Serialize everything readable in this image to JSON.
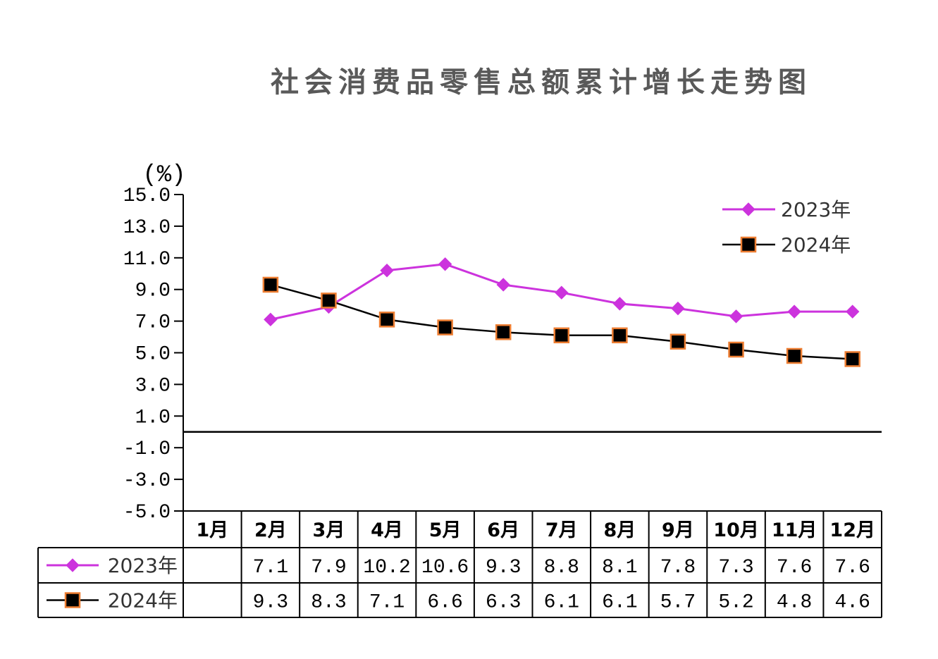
{
  "chart_data": {
    "type": "line",
    "title": "社会消费品零售总额累计增长走势图",
    "ylabel": "(%)",
    "ylim": [
      -5,
      15
    ],
    "y_ticks": [
      "15.0",
      "13.0",
      "11.0",
      "9.0",
      "7.0",
      "5.0",
      "3.0",
      "1.0",
      "-1.0",
      "-3.0",
      "-5.0"
    ],
    "categories": [
      "1月",
      "2月",
      "3月",
      "4月",
      "5月",
      "6月",
      "7月",
      "8月",
      "9月",
      "10月",
      "11月",
      "12月"
    ],
    "series": [
      {
        "name": "2023年",
        "color": "#CC33DD",
        "marker": "diamond",
        "marker_fill": "#CC33DD",
        "marker_edge": "#CC33DD",
        "values": [
          null,
          7.1,
          7.9,
          10.2,
          10.6,
          9.3,
          8.8,
          8.1,
          7.8,
          7.3,
          7.6,
          7.6
        ]
      },
      {
        "name": "2024年",
        "color": "#000000",
        "marker": "square",
        "marker_fill": "#000000",
        "marker_edge": "#ED7D31",
        "values": [
          null,
          9.3,
          8.3,
          7.1,
          6.6,
          6.3,
          6.1,
          6.1,
          5.7,
          5.2,
          4.8,
          4.6
        ]
      }
    ],
    "legend": "top-right",
    "grid": false,
    "data_table": true
  },
  "colors": {
    "title": "#595959",
    "axis": "#000000"
  }
}
